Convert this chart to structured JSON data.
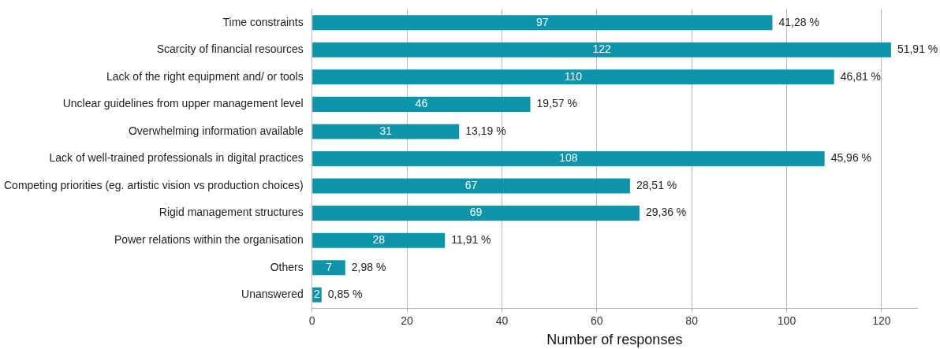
{
  "chart_data": {
    "type": "bar",
    "orientation": "horizontal",
    "xlabel": "Number of responses",
    "categories": [
      "Time constraints",
      "Scarcity of financial resources",
      "Lack of the right equipment and/ or tools",
      "Unclear guidelines from upper management level",
      "Overwhelming information available",
      "Lack of well-trained professionals in digital practices",
      "Competing priorities (eg. artistic vision vs production choices)",
      "Rigid management structures",
      "Power relations within the organisation",
      "Others",
      "Unanswered"
    ],
    "values": [
      97,
      122,
      110,
      46,
      31,
      108,
      67,
      69,
      28,
      7,
      2
    ],
    "color": "#0e95ac",
    "xlim": [
      0,
      127.5
    ],
    "xticks": [
      0,
      20,
      40,
      60,
      80,
      100,
      120
    ],
    "grid": "x",
    "data_labels": true,
    "legend": false,
    "annotations": [
      {
        "text": "41,28 %",
        "x": 97,
        "y": "Time constraints"
      },
      {
        "text": "51,91 %",
        "x": 122,
        "y": "Scarcity of financial resources"
      },
      {
        "text": "46,81 %",
        "x": 110,
        "y": "Lack of the right equipment and/ or tools"
      },
      {
        "text": "19,57 %",
        "x": 46,
        "y": "Unclear guidelines from upper management level"
      },
      {
        "text": "13,19 %",
        "x": 31,
        "y": "Overwhelming information available"
      },
      {
        "text": "45,96 %",
        "x": 108,
        "y": "Lack of well-trained professionals in digital practices"
      },
      {
        "text": "28,51 %",
        "x": 67,
        "y": "Competing priorities (eg. artistic vision vs production choices)"
      },
      {
        "text": "29,36 %",
        "x": 69,
        "y": "Rigid management structures"
      },
      {
        "text": "11,91 %",
        "x": 28,
        "y": "Power relations within the organisation"
      },
      {
        "text": "2,98 %",
        "x": 7,
        "y": "Others"
      },
      {
        "text": "0,85 %",
        "x": 2,
        "y": "Unanswered"
      }
    ]
  }
}
